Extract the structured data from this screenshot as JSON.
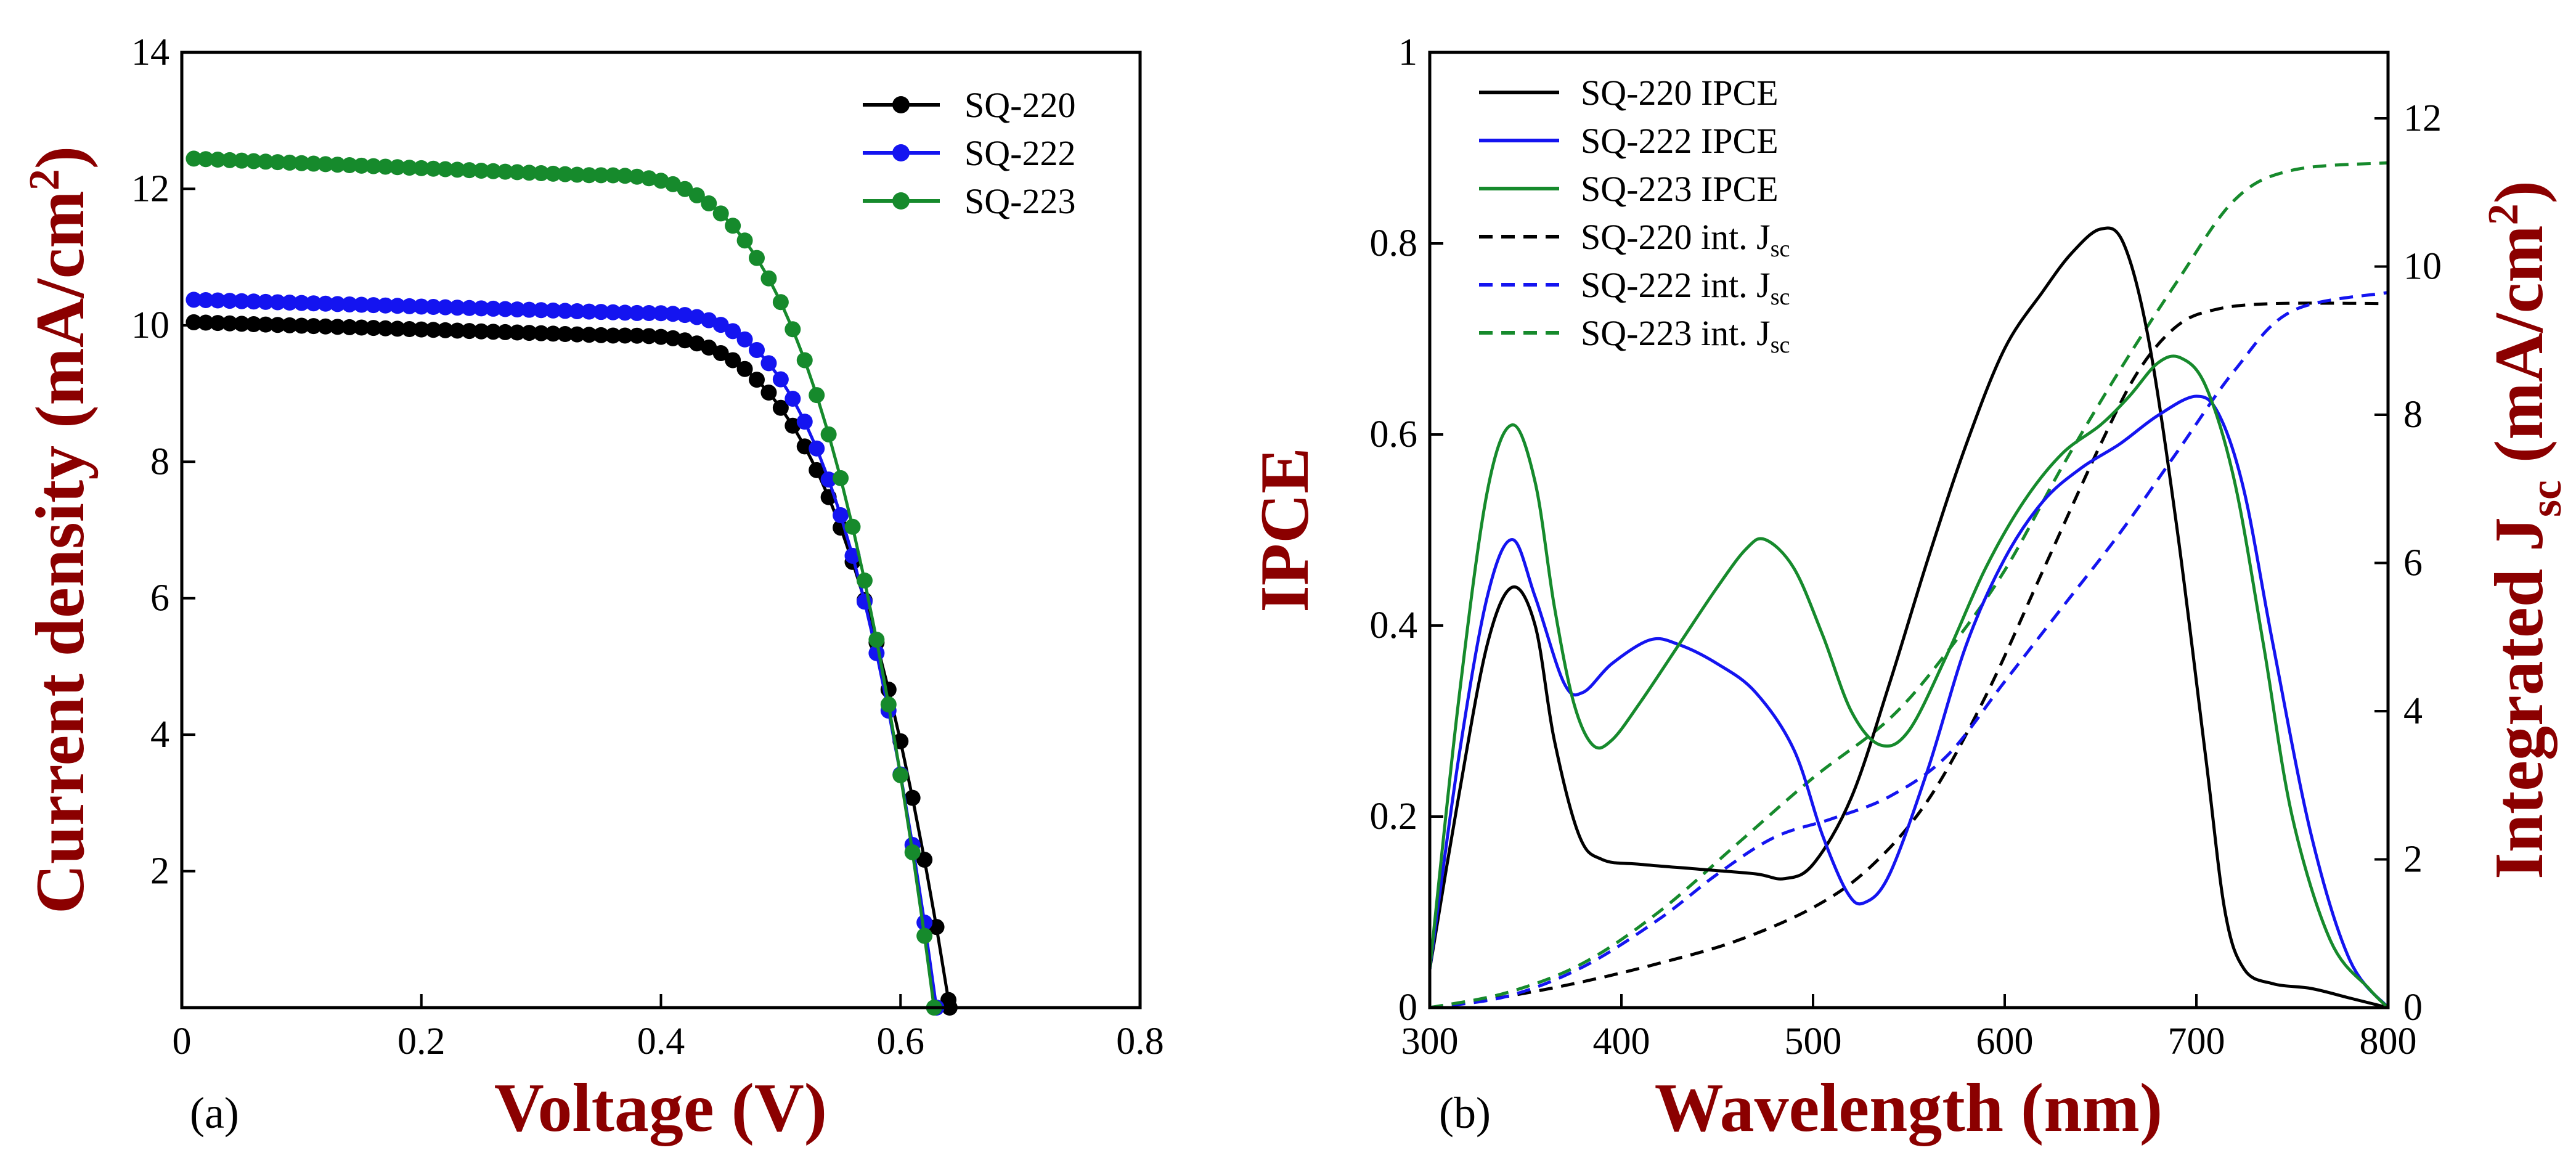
{
  "colors": {
    "SQ-220": "#000000",
    "SQ-222": "#1414f0",
    "SQ-223": "#168a2c",
    "label": "#8b0000"
  },
  "chart_data": [
    {
      "id": "a",
      "type": "line",
      "panel_label": "(a)",
      "xlabel": "Voltage (V)",
      "ylabel_main": "Current density (mA/cm",
      "ylabel_sup": "2",
      "ylabel_end": ")",
      "xlim": [
        0,
        0.8
      ],
      "ylim": [
        0,
        14
      ],
      "xticks": [
        0,
        0.2,
        0.4,
        0.6,
        0.8
      ],
      "xtick_labels": [
        "0",
        "0.2",
        "0.4",
        "0.6",
        "0.8"
      ],
      "yticks": [
        2,
        4,
        6,
        8,
        10,
        12,
        14
      ],
      "ytick_labels": [
        "2",
        "4",
        "6",
        "8",
        "10",
        "12",
        "14"
      ],
      "legend": [
        "SQ-220",
        "SQ-222",
        "SQ-223"
      ],
      "series": [
        {
          "name": "SQ-220",
          "jsc": 10.05,
          "voc": 0.641,
          "knee": 0.36,
          "sharp": 3.2,
          "droop": 0.2
        },
        {
          "name": "SQ-222",
          "jsc": 10.38,
          "voc": 0.63,
          "knee": 0.38,
          "sharp": 3.2,
          "droop": 0.2
        },
        {
          "name": "SQ-223",
          "jsc": 12.45,
          "voc": 0.628,
          "knee": 0.34,
          "sharp": 3.2,
          "droop": 0.25
        }
      ]
    },
    {
      "id": "b",
      "type": "line",
      "panel_label": "(b)",
      "xlabel": "Wavelength (nm)",
      "ylabel": "IPCE",
      "y2label_main": "Integrated J",
      "y2label_sub": "sc",
      "y2label_mid": " (mA/cm",
      "y2label_sup": "2",
      "y2label_end": ")",
      "xlim": [
        300,
        800
      ],
      "ylim": [
        0,
        1
      ],
      "y2lim": [
        0,
        12.89
      ],
      "xticks": [
        300,
        400,
        500,
        600,
        700,
        800
      ],
      "xtick_labels": [
        "300",
        "400",
        "500",
        "600",
        "700",
        "800"
      ],
      "yticks": [
        0,
        0.2,
        0.4,
        0.6,
        0.8,
        1
      ],
      "ytick_labels": [
        "0",
        "0.2",
        "0.4",
        "0.6",
        "0.8",
        "1"
      ],
      "y2ticks": [
        0,
        2,
        4,
        6,
        8,
        10,
        12
      ],
      "y2tick_labels": [
        "0",
        "2",
        "4",
        "6",
        "8",
        "10",
        "12"
      ],
      "legend": [
        {
          "label": "SQ-220 IPCE",
          "color": "SQ-220",
          "dash": false
        },
        {
          "label": "SQ-222 IPCE",
          "color": "SQ-222",
          "dash": false
        },
        {
          "label": "SQ-223 IPCE",
          "color": "SQ-223",
          "dash": false
        },
        {
          "label": "SQ-220 int. J",
          "sub": "sc",
          "color": "SQ-220",
          "dash": true
        },
        {
          "label": "SQ-222 int. J",
          "sub": "sc",
          "color": "SQ-222",
          "dash": true
        },
        {
          "label": "SQ-223 int. J",
          "sub": "sc",
          "color": "SQ-223",
          "dash": true
        }
      ],
      "ipce": [
        {
          "name": "SQ-220",
          "points": [
            [
              300,
              0.04
            ],
            [
              315,
              0.22
            ],
            [
              330,
              0.38
            ],
            [
              343,
              0.44
            ],
            [
              355,
              0.4
            ],
            [
              365,
              0.28
            ],
            [
              378,
              0.18
            ],
            [
              390,
              0.155
            ],
            [
              410,
              0.15
            ],
            [
              440,
              0.145
            ],
            [
              470,
              0.14
            ],
            [
              485,
              0.135
            ],
            [
              500,
              0.15
            ],
            [
              520,
              0.22
            ],
            [
              540,
              0.34
            ],
            [
              560,
              0.47
            ],
            [
              580,
              0.59
            ],
            [
              600,
              0.69
            ],
            [
              620,
              0.75
            ],
            [
              635,
              0.79
            ],
            [
              650,
              0.815
            ],
            [
              662,
              0.8
            ],
            [
              675,
              0.7
            ],
            [
              690,
              0.5
            ],
            [
              705,
              0.26
            ],
            [
              715,
              0.1
            ],
            [
              725,
              0.04
            ],
            [
              740,
              0.025
            ],
            [
              760,
              0.02
            ],
            [
              780,
              0.01
            ],
            [
              800,
              0.0
            ]
          ]
        },
        {
          "name": "SQ-222",
          "points": [
            [
              300,
              0.04
            ],
            [
              315,
              0.26
            ],
            [
              330,
              0.43
            ],
            [
              343,
              0.49
            ],
            [
              355,
              0.43
            ],
            [
              370,
              0.34
            ],
            [
              380,
              0.33
            ],
            [
              395,
              0.36
            ],
            [
              415,
              0.385
            ],
            [
              430,
              0.38
            ],
            [
              450,
              0.36
            ],
            [
              470,
              0.33
            ],
            [
              490,
              0.27
            ],
            [
              505,
              0.18
            ],
            [
              518,
              0.12
            ],
            [
              527,
              0.11
            ],
            [
              540,
              0.14
            ],
            [
              560,
              0.25
            ],
            [
              580,
              0.38
            ],
            [
              600,
              0.47
            ],
            [
              620,
              0.53
            ],
            [
              640,
              0.565
            ],
            [
              660,
              0.59
            ],
            [
              680,
              0.62
            ],
            [
              700,
              0.64
            ],
            [
              712,
              0.62
            ],
            [
              725,
              0.54
            ],
            [
              740,
              0.38
            ],
            [
              760,
              0.18
            ],
            [
              780,
              0.05
            ],
            [
              800,
              0.0
            ]
          ]
        },
        {
          "name": "SQ-223",
          "points": [
            [
              300,
              0.04
            ],
            [
              315,
              0.32
            ],
            [
              330,
              0.54
            ],
            [
              343,
              0.61
            ],
            [
              355,
              0.55
            ],
            [
              365,
              0.42
            ],
            [
              375,
              0.32
            ],
            [
              385,
              0.275
            ],
            [
              395,
              0.28
            ],
            [
              410,
              0.32
            ],
            [
              430,
              0.38
            ],
            [
              450,
              0.44
            ],
            [
              465,
              0.48
            ],
            [
              475,
              0.49
            ],
            [
              490,
              0.46
            ],
            [
              505,
              0.39
            ],
            [
              520,
              0.31
            ],
            [
              535,
              0.275
            ],
            [
              550,
              0.29
            ],
            [
              570,
              0.37
            ],
            [
              590,
              0.46
            ],
            [
              610,
              0.53
            ],
            [
              630,
              0.58
            ],
            [
              650,
              0.61
            ],
            [
              665,
              0.64
            ],
            [
              680,
              0.675
            ],
            [
              692,
              0.68
            ],
            [
              705,
              0.65
            ],
            [
              720,
              0.55
            ],
            [
              735,
              0.38
            ],
            [
              750,
              0.2
            ],
            [
              770,
              0.07
            ],
            [
              790,
              0.02
            ],
            [
              800,
              0.0
            ]
          ]
        }
      ],
      "int_jsc": [
        {
          "name": "SQ-220",
          "points": [
            [
              300,
              0.0
            ],
            [
              340,
              0.15
            ],
            [
              380,
              0.35
            ],
            [
              420,
              0.6
            ],
            [
              460,
              0.9
            ],
            [
              500,
              1.35
            ],
            [
              530,
              1.9
            ],
            [
              560,
              2.8
            ],
            [
              590,
              4.2
            ],
            [
              620,
              5.9
            ],
            [
              650,
              7.6
            ],
            [
              670,
              8.6
            ],
            [
              690,
              9.2
            ],
            [
              710,
              9.42
            ],
            [
              740,
              9.5
            ],
            [
              800,
              9.5
            ]
          ]
        },
        {
          "name": "SQ-222",
          "points": [
            [
              300,
              0.0
            ],
            [
              340,
              0.15
            ],
            [
              380,
              0.55
            ],
            [
              420,
              1.2
            ],
            [
              450,
              1.8
            ],
            [
              480,
              2.3
            ],
            [
              510,
              2.55
            ],
            [
              540,
              2.85
            ],
            [
              570,
              3.4
            ],
            [
              600,
              4.4
            ],
            [
              630,
              5.4
            ],
            [
              660,
              6.4
            ],
            [
              690,
              7.5
            ],
            [
              720,
              8.6
            ],
            [
              750,
              9.4
            ],
            [
              800,
              9.65
            ]
          ]
        },
        {
          "name": "SQ-223",
          "points": [
            [
              300,
              0.0
            ],
            [
              340,
              0.2
            ],
            [
              380,
              0.6
            ],
            [
              420,
              1.3
            ],
            [
              460,
              2.2
            ],
            [
              500,
              3.1
            ],
            [
              540,
              3.9
            ],
            [
              570,
              4.8
            ],
            [
              600,
              5.9
            ],
            [
              630,
              7.3
            ],
            [
              660,
              8.6
            ],
            [
              690,
              9.8
            ],
            [
              720,
              10.9
            ],
            [
              750,
              11.3
            ],
            [
              800,
              11.4
            ]
          ]
        }
      ]
    }
  ]
}
